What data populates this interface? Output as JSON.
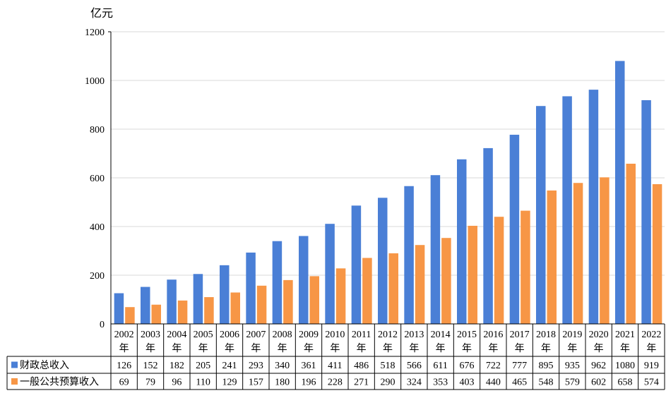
{
  "chart_data": {
    "type": "bar",
    "unit_label": "亿元",
    "categories": [
      [
        "2002",
        "年"
      ],
      [
        "2003",
        "年"
      ],
      [
        "2004",
        "年"
      ],
      [
        "2005",
        "年"
      ],
      [
        "2006",
        "年"
      ],
      [
        "2007",
        "年"
      ],
      [
        "2008",
        "年"
      ],
      [
        "2009",
        "年"
      ],
      [
        "2010",
        "年"
      ],
      [
        "2011",
        "年"
      ],
      [
        "2012",
        "年"
      ],
      [
        "2013",
        "年"
      ],
      [
        "2014",
        "年"
      ],
      [
        "2015",
        "年"
      ],
      [
        "2016",
        "年"
      ],
      [
        "2017",
        "年"
      ],
      [
        "2018",
        "年"
      ],
      [
        "2019",
        "年"
      ],
      [
        "2020",
        "年"
      ],
      [
        "2021",
        "年"
      ],
      [
        "2022",
        "年"
      ]
    ],
    "series": [
      {
        "name": "财政总收入",
        "color": "#4A7FD6",
        "values": [
          126,
          152,
          182,
          205,
          241,
          293,
          340,
          361,
          411,
          486,
          518,
          566,
          611,
          676,
          722,
          777,
          895,
          935,
          962,
          1080,
          919
        ]
      },
      {
        "name": "一般公共预算收入",
        "color": "#F79646",
        "values": [
          69,
          79,
          96,
          110,
          129,
          157,
          180,
          196,
          228,
          271,
          290,
          324,
          353,
          403,
          440,
          465,
          548,
          579,
          602,
          658,
          574
        ]
      }
    ],
    "ylim": [
      0,
      1200
    ],
    "yticks": [
      "0",
      "200",
      "400",
      "600",
      "800",
      "1000",
      "1200"
    ],
    "grid": true,
    "data_table": true
  }
}
